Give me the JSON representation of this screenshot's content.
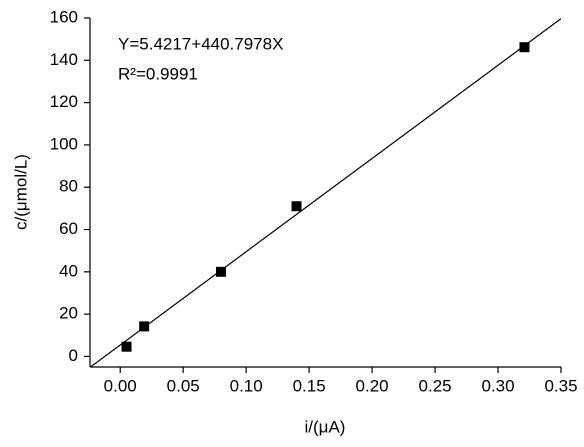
{
  "chart_data": {
    "type": "scatter",
    "xlabel": "i/(μA)",
    "ylabel": "c/(μmol/L)",
    "annotations": [
      "Y=5.4217+440.7978X",
      "R²=0.9991"
    ],
    "series": [
      {
        "type": "scatter",
        "color": "#000000",
        "x": [
          0.005,
          0.019,
          0.08,
          0.14,
          0.321
        ],
        "values": [
          4.6,
          14.2,
          40,
          71,
          146.2
        ]
      },
      {
        "type": "line",
        "color": "#000000",
        "x": [
          -0.024,
          0.35
        ],
        "values": [
          -5.16,
          159.7
        ]
      }
    ],
    "xlim": [
      -0.024,
      0.35
    ],
    "ylim": [
      -5,
      160
    ],
    "xticks": [
      {
        "value": 0,
        "label": "0.00"
      },
      0.05,
      {
        "value": 0.1,
        "label": "0.10"
      },
      0.15,
      {
        "value": 0.2,
        "label": "0.20"
      },
      0.25,
      {
        "value": 0.3,
        "label": "0.30"
      },
      0.35
    ],
    "yticks": [
      0,
      20,
      40,
      60,
      80,
      100,
      120,
      140,
      160
    ]
  }
}
